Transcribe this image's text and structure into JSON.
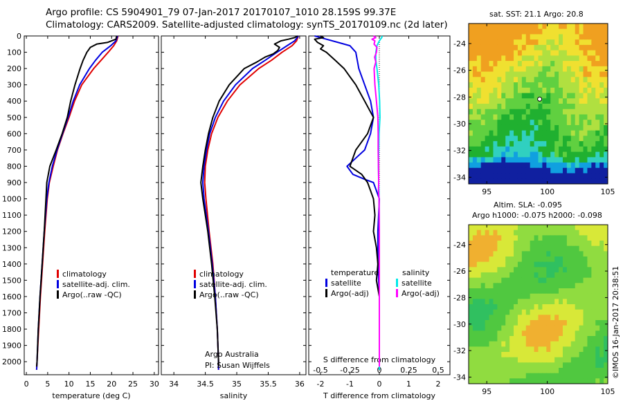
{
  "header": {
    "line1": "Argo profile: CS 5904901_79 07-Jan-2017 20170107_1010 28.159S 99.37E",
    "line2": "Climatology: CARS2009. Satellite-adjusted climatology: synTS_20170109.nc (2d later)"
  },
  "credits": {
    "program": "Argo Australia",
    "pi": "PI: Susan Wijffels",
    "stamp": "©IMOS 16-Jan-2017 20:38:51"
  },
  "maps": {
    "sst_title": "sat. SST: 21.1 Argo: 20.8",
    "sla_title1": "Altim. SLA: -0.095",
    "sla_title2": "Argo h1000: -0.075 h2000: -0.098",
    "lat_ticks": [
      "-24",
      "-26",
      "-28",
      "-30",
      "-32",
      "-34"
    ],
    "lon_ticks": [
      "95",
      "100",
      "105"
    ],
    "lat_range": [
      -34.5,
      -22.5
    ],
    "lon_range": [
      93.5,
      105
    ],
    "float_position": {
      "lat": -28.159,
      "lon": 99.37
    },
    "sst_colors": [
      "#1020a0",
      "#10a0e0",
      "#30d0c0",
      "#20b030",
      "#60d040",
      "#b0e040",
      "#f0e030",
      "#f0a020"
    ],
    "sla_colors": [
      "#30c060",
      "#50c840",
      "#90dc40",
      "#d8e838",
      "#f0b030",
      "#f08020"
    ]
  },
  "chart_data": [
    {
      "type": "line",
      "xlabel": "temperature (deg C)",
      "ylabel": "",
      "xlim": [
        -0.5,
        31
      ],
      "ylim": [
        2080,
        0
      ],
      "xticks": [
        0,
        5,
        10,
        15,
        20,
        25,
        30
      ],
      "xtick_labels": [
        "0",
        "5",
        "10",
        "15",
        "20",
        "25",
        "30"
      ],
      "yticks": [
        0,
        100,
        200,
        300,
        400,
        500,
        600,
        700,
        800,
        900,
        1000,
        1100,
        1200,
        1300,
        1400,
        1500,
        1600,
        1700,
        1800,
        1900,
        2000
      ],
      "ytick_labels": [
        "0",
        "100",
        "200",
        "300",
        "400",
        "500",
        "600",
        "700",
        "800",
        "900",
        "1000",
        "1100",
        "1200",
        "1300",
        "1400",
        "1500",
        "1600",
        "1700",
        "1800",
        "1900",
        "2000"
      ],
      "legend": [
        "climatology",
        "satellite-adj. clim.",
        "Argo(..raw -QC)"
      ],
      "legend_colors": [
        "#e00000",
        "#0000e0",
        "#000000"
      ],
      "series": [
        {
          "name": "climatology",
          "color": "#e00000",
          "depth": [
            0,
            30,
            60,
            100,
            150,
            200,
            300,
            400,
            500,
            600,
            700,
            800,
            900,
            1000,
            1200,
            1400,
            1600,
            1800,
            2000,
            2050
          ],
          "values": [
            21.5,
            21.2,
            20.5,
            19.2,
            17.5,
            15.8,
            13.0,
            11.3,
            10.0,
            8.6,
            7.3,
            6.3,
            5.4,
            4.9,
            4.3,
            3.8,
            3.3,
            2.9,
            2.5,
            2.4
          ]
        },
        {
          "name": "satellite-adj. clim.",
          "color": "#0000e0",
          "depth": [
            0,
            30,
            60,
            100,
            150,
            200,
            300,
            400,
            500,
            600,
            700,
            800,
            900,
            1000,
            1200,
            1400,
            1600,
            1800,
            2000,
            2050
          ],
          "values": [
            21.4,
            21.0,
            19.8,
            17.8,
            16.2,
            14.8,
            12.5,
            11.0,
            9.8,
            8.5,
            7.2,
            6.1,
            5.3,
            4.8,
            4.2,
            3.7,
            3.2,
            2.8,
            2.5,
            2.4
          ]
        },
        {
          "name": "Argo(..raw -QC)",
          "color": "#000000",
          "depth": [
            0,
            20,
            40,
            50,
            70,
            100,
            150,
            200,
            300,
            400,
            500,
            600,
            700,
            800,
            900,
            1000,
            1200,
            1400,
            1600,
            1800,
            2000,
            2030
          ],
          "values": [
            21.2,
            21.0,
            19.0,
            16.5,
            15.0,
            14.2,
            13.3,
            12.6,
            11.4,
            10.4,
            9.6,
            8.4,
            7.0,
            5.5,
            4.8,
            4.6,
            4.2,
            3.7,
            3.2,
            2.8,
            2.5,
            2.4
          ]
        }
      ]
    },
    {
      "type": "line",
      "xlabel": "salinity",
      "ylabel": "",
      "xlim": [
        33.8,
        36.1
      ],
      "ylim": [
        2080,
        0
      ],
      "xticks": [
        34,
        34.5,
        35,
        35.5,
        36
      ],
      "xtick_labels": [
        "34",
        "34.5",
        "35",
        "35.5",
        "36"
      ],
      "legend": [
        "climatology",
        "satellite-adj. clim.",
        "Argo(..raw -QC)"
      ],
      "legend_colors": [
        "#e00000",
        "#0000e0",
        "#000000"
      ],
      "series": [
        {
          "name": "climatology",
          "color": "#e00000",
          "depth": [
            0,
            30,
            60,
            100,
            150,
            200,
            300,
            400,
            500,
            600,
            700,
            800,
            900,
            1000,
            1200,
            1400,
            1600,
            1800,
            2000,
            2050
          ],
          "values": [
            35.98,
            35.95,
            35.88,
            35.72,
            35.55,
            35.35,
            35.05,
            34.85,
            34.7,
            34.6,
            34.54,
            34.5,
            34.49,
            34.51,
            34.56,
            34.62,
            34.66,
            34.69,
            34.71,
            34.71
          ]
        },
        {
          "name": "satellite-adj. clim.",
          "color": "#0000e0",
          "depth": [
            0,
            30,
            60,
            100,
            150,
            200,
            300,
            400,
            500,
            600,
            700,
            800,
            900,
            1000,
            1200,
            1400,
            1600,
            1800,
            2000,
            2050
          ],
          "values": [
            35.98,
            35.92,
            35.8,
            35.64,
            35.45,
            35.25,
            34.98,
            34.79,
            34.66,
            34.57,
            34.52,
            34.48,
            34.46,
            34.48,
            34.55,
            34.61,
            34.66,
            34.69,
            34.71,
            34.71
          ]
        },
        {
          "name": "Argo(..raw -QC)",
          "color": "#000000",
          "depth": [
            0,
            10,
            20,
            30,
            50,
            70,
            90,
            110,
            130,
            160,
            200,
            300,
            400,
            500,
            600,
            700,
            800,
            900,
            1000,
            1200,
            1400,
            1600,
            1800,
            2000,
            2030
          ],
          "values": [
            35.97,
            35.92,
            35.82,
            35.7,
            35.6,
            35.68,
            35.65,
            35.58,
            35.45,
            35.32,
            35.12,
            34.88,
            34.72,
            34.62,
            34.55,
            34.5,
            34.46,
            34.43,
            34.46,
            34.54,
            34.6,
            34.65,
            34.69,
            34.71,
            34.71
          ]
        }
      ]
    },
    {
      "type": "line",
      "xlabel": "T difference from climatology",
      "top_xlabel": "S difference from climatology",
      "ylabel": "",
      "xlim": [
        -2.4,
        2.4
      ],
      "ylim": [
        2080,
        0
      ],
      "xticks": [
        -2,
        -1,
        0,
        1,
        2
      ],
      "xtick_labels": [
        "-2",
        "-1",
        "0",
        "1",
        "2"
      ],
      "s_ticks": [
        -0.5,
        -0.25,
        0,
        0.25,
        0.5
      ],
      "s_tick_labels": [
        "-0.5",
        "-0.25",
        "0",
        "0.25",
        "0.5"
      ],
      "legend_groups": [
        {
          "title": "temperature",
          "entries": [
            "satellite",
            "Argo(-adj)"
          ],
          "colors": [
            "#0000e0",
            "#000000"
          ]
        },
        {
          "title": "salinity",
          "entries": [
            "satellite",
            "Argo(-adj)"
          ],
          "colors": [
            "#00e8e8",
            "#ff00ff"
          ]
        }
      ],
      "series": [
        {
          "name": "temperature satellite",
          "color": "#0000e0",
          "depth": [
            0,
            20,
            40,
            60,
            100,
            200,
            300,
            400,
            500,
            600,
            700,
            750,
            800,
            850,
            880,
            900,
            950,
            1000,
            1200,
            1400,
            1600,
            1800,
            2000,
            2050
          ],
          "values": [
            -2.2,
            -1.8,
            -1.4,
            -1.0,
            -0.8,
            -0.7,
            -0.5,
            -0.3,
            -0.2,
            -0.3,
            -0.5,
            -0.8,
            -1.1,
            -0.9,
            -0.5,
            -0.2,
            -0.1,
            0.0,
            -0.05,
            -0.05,
            0.0,
            0.0,
            0.0,
            0.0
          ]
        },
        {
          "name": "temperature Argo(-adj)",
          "color": "#000000",
          "depth": [
            0,
            10,
            20,
            40,
            60,
            80,
            100,
            150,
            200,
            250,
            300,
            400,
            500,
            600,
            700,
            800,
            850,
            900,
            950,
            1000,
            1100,
            1200,
            1300,
            1400,
            1500,
            1600,
            1800,
            2000,
            2030
          ],
          "values": [
            -2.0,
            -1.9,
            -2.2,
            -2.1,
            -1.9,
            -2.0,
            -1.8,
            -1.5,
            -1.2,
            -1.0,
            -0.8,
            -0.5,
            -0.2,
            -0.4,
            -0.8,
            -1.0,
            -0.6,
            -0.4,
            -0.3,
            -0.2,
            -0.15,
            -0.2,
            -0.1,
            -0.05,
            -0.1,
            0.0,
            0.0,
            0.0,
            0.0
          ]
        },
        {
          "name": "salinity satellite",
          "color": "#00e8e8",
          "depth": [
            0,
            10,
            30,
            60,
            100,
            150,
            200,
            300,
            400,
            500,
            600,
            700,
            800,
            900,
            1000,
            1200,
            1400,
            1600,
            1800,
            2000,
            2050
          ],
          "values": [
            0.1,
            0.08,
            0.0,
            -0.08,
            -0.12,
            -0.12,
            -0.08,
            -0.02,
            0.01,
            0.02,
            -0.01,
            -0.02,
            -0.03,
            -0.02,
            -0.01,
            0.0,
            0.0,
            0.0,
            0.0,
            0.0,
            0.0
          ]
        },
        {
          "name": "salinity Argo(-adj)",
          "color": "#ff00ff",
          "depth": [
            0,
            10,
            20,
            30,
            50,
            70,
            100,
            130,
            160,
            200,
            300,
            400,
            500,
            600,
            700,
            800,
            900,
            950,
            1000,
            1200,
            1400,
            1600,
            1800,
            2000,
            2030
          ],
          "values": [
            -0.2,
            -0.12,
            -0.25,
            -0.15,
            -0.18,
            -0.08,
            -0.1,
            -0.16,
            -0.12,
            -0.18,
            -0.15,
            -0.1,
            -0.05,
            -0.04,
            -0.04,
            -0.03,
            -0.02,
            -0.03,
            -0.01,
            0.0,
            0.0,
            0.0,
            0.0,
            0.0,
            0.0
          ]
        }
      ]
    }
  ]
}
